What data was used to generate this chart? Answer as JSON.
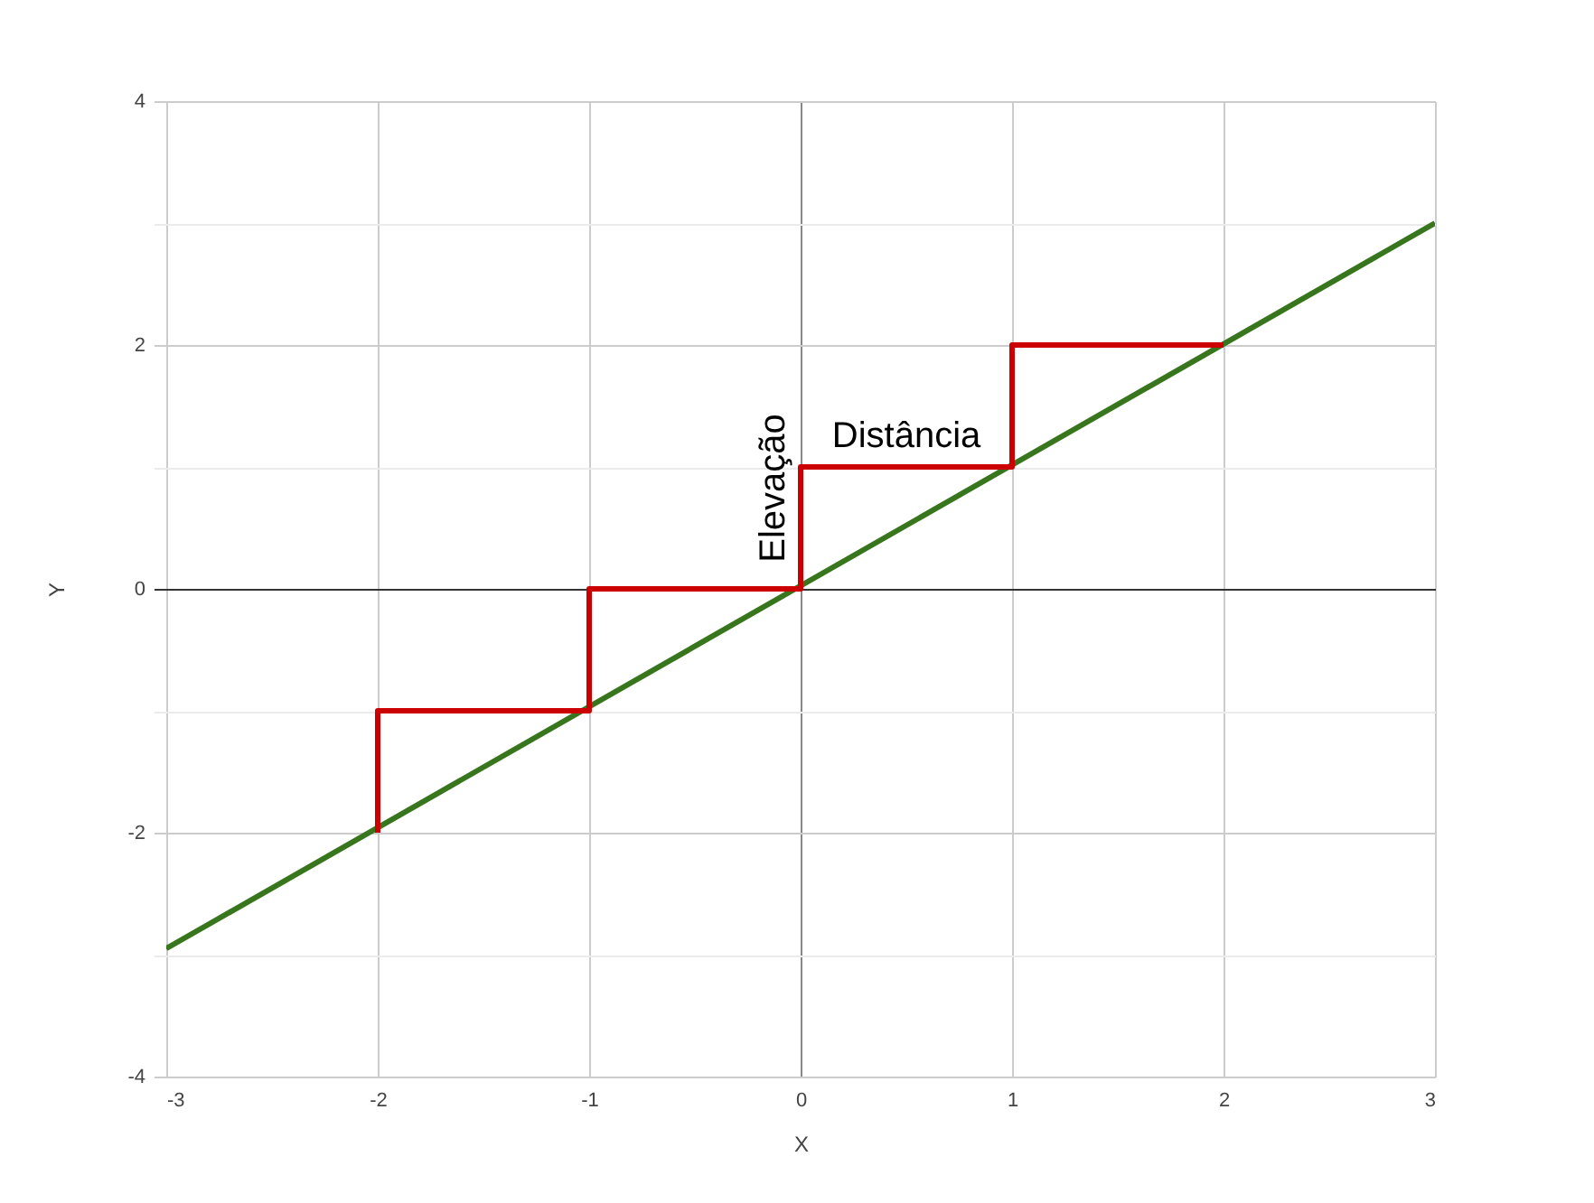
{
  "chart_data": {
    "type": "line",
    "xlabel": "X",
    "ylabel": "Y",
    "xlim": [
      -3,
      3
    ],
    "xticks": [
      -3,
      -2,
      -1,
      0,
      1,
      2,
      3
    ],
    "ylim": [
      -4,
      4
    ],
    "yticks": [
      -4,
      {
        "value": -3,
        "label": null
      },
      -2,
      {
        "value": -1,
        "label": null
      },
      0,
      {
        "value": 1,
        "label": null
      },
      2,
      {
        "value": 3,
        "label": null
      },
      4
    ],
    "grid": true,
    "marker": "none",
    "line_style": "solid",
    "series": [
      {
        "color": "#38761d",
        "x": [
          -3,
          3
        ],
        "values": [
          -2.95,
          3
        ]
      },
      {
        "color": "#cc0000",
        "x": [
          -2,
          -2,
          -1,
          -1,
          0,
          0,
          1,
          1,
          2
        ],
        "values": [
          -2,
          -1,
          -1,
          0,
          0,
          1,
          1,
          2,
          2
        ]
      }
    ],
    "annotations": [
      {
        "text": "Elevação",
        "x": 0,
        "y": 0.5
      },
      {
        "text": "Distância",
        "x": 0.5,
        "y": 1
      }
    ]
  }
}
